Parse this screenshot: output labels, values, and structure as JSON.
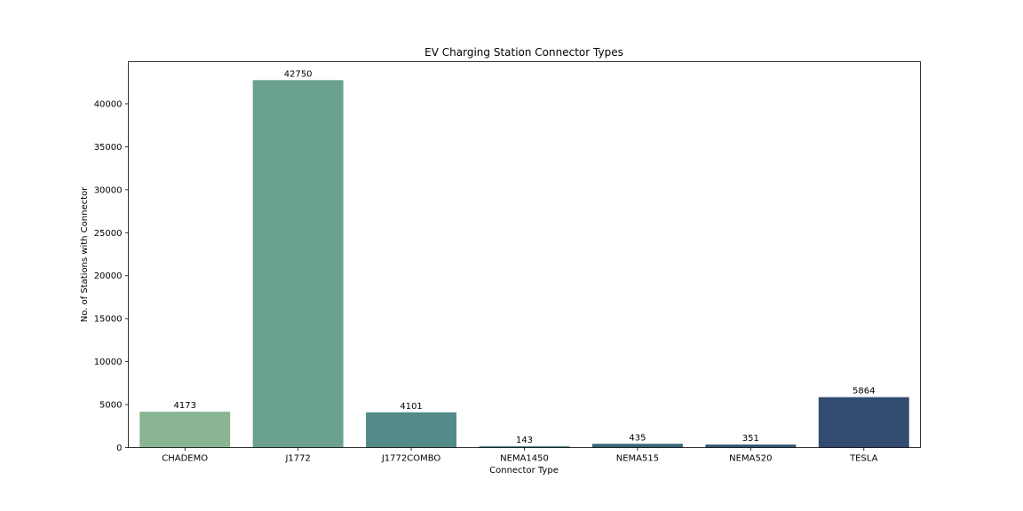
{
  "chart_data": {
    "type": "bar",
    "title": "EV Charging Station Connector Types",
    "xlabel": "Connector Type",
    "ylabel": "No. of Stations with Connector",
    "categories": [
      "CHADEMO",
      "J1772",
      "J1772COMBO",
      "NEMA1450",
      "NEMA515",
      "NEMA520",
      "TESLA"
    ],
    "values": [
      4173,
      42750,
      4101,
      143,
      435,
      351,
      5864
    ],
    "colors": [
      "#8ab592",
      "#6aa28d",
      "#528b87",
      "#3e767f",
      "#336778",
      "#325875",
      "#324b71"
    ],
    "ylim": [
      0,
      44900
    ],
    "yticks": [
      0,
      5000,
      10000,
      15000,
      20000,
      25000,
      30000,
      35000,
      40000
    ],
    "grid": false,
    "legend": "none"
  }
}
